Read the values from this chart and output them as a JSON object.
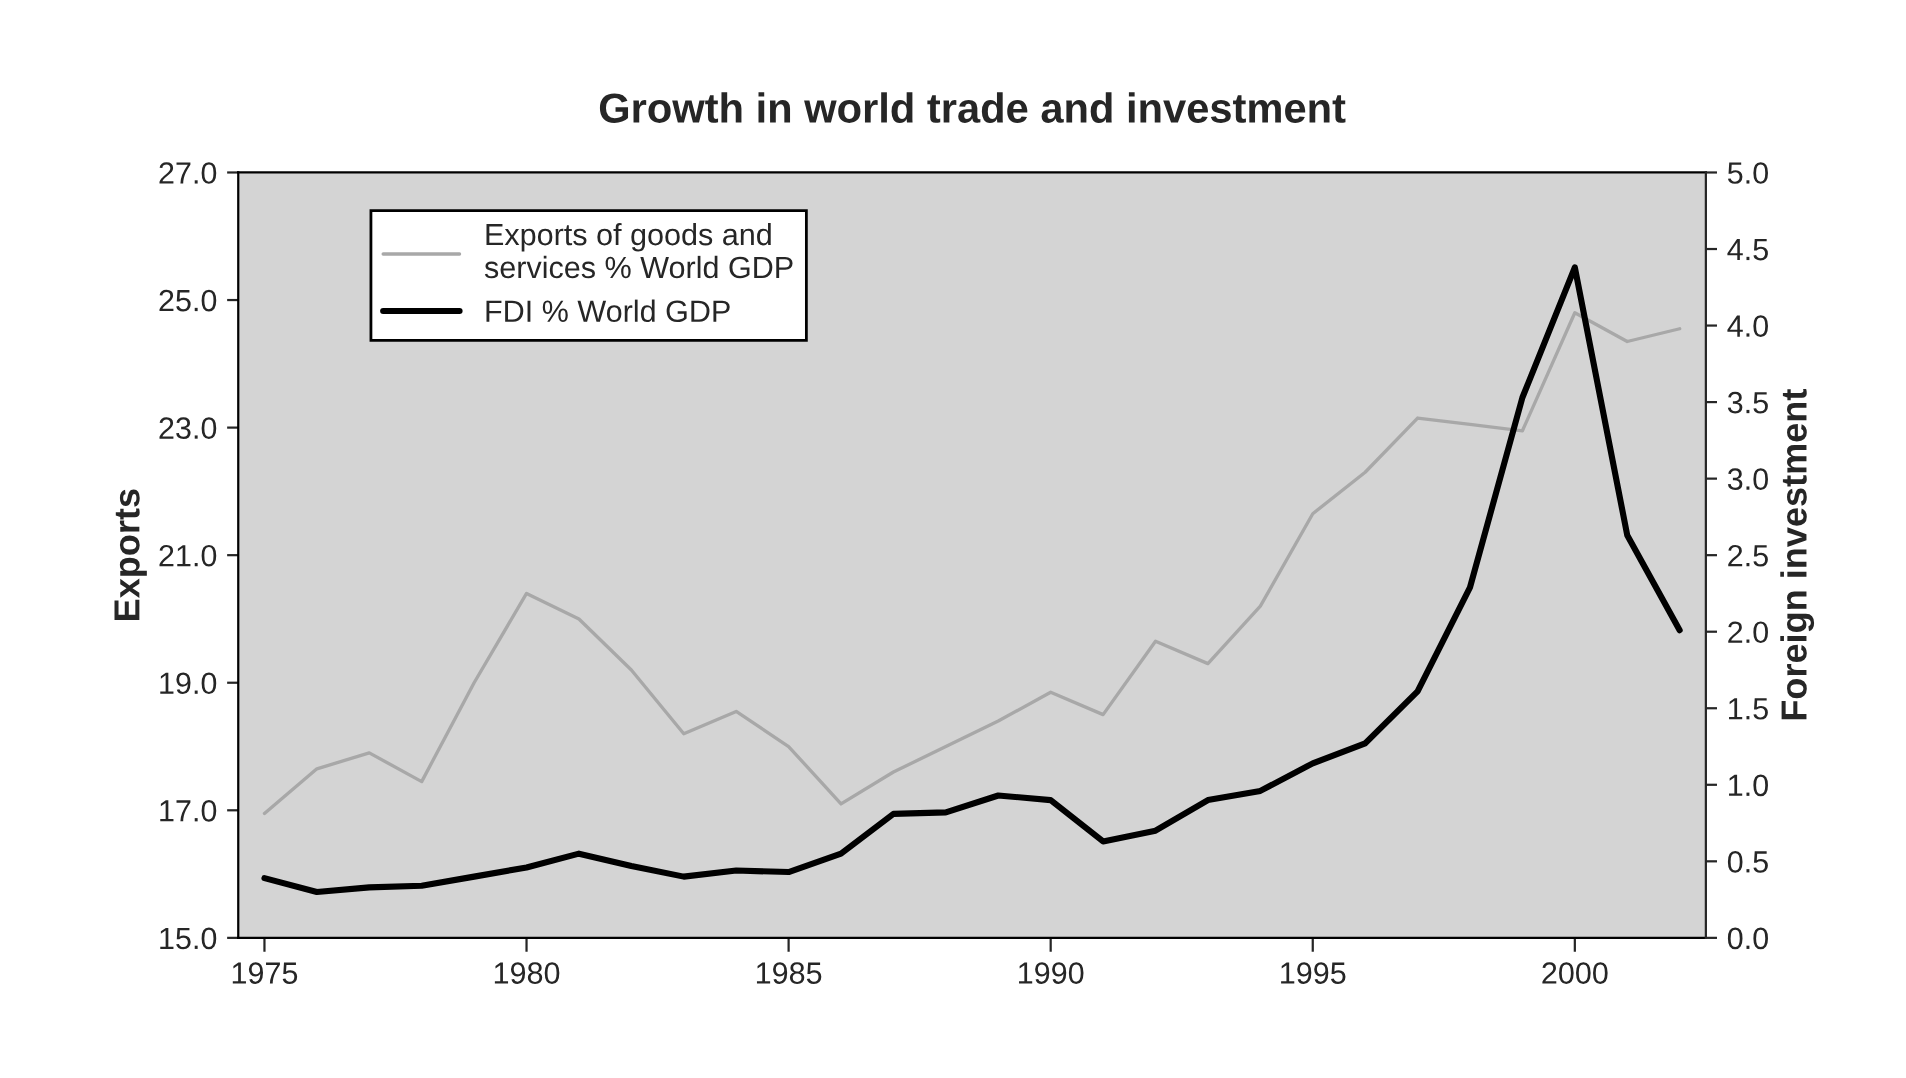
{
  "chart_data": {
    "type": "line",
    "title": "Growth in world trade and investment",
    "ylabel": "Exports",
    "y2label": "Foreign investment",
    "x": [
      1975,
      1976,
      1977,
      1978,
      1979,
      1980,
      1981,
      1982,
      1983,
      1984,
      1985,
      1986,
      1987,
      1988,
      1989,
      1990,
      1991,
      1992,
      1993,
      1994,
      1995,
      1996,
      1997,
      1998,
      1999,
      2000,
      2001,
      2002
    ],
    "series": [
      {
        "name": "Exports of goods and services % World GDP",
        "color": "#a8a8a8",
        "values": [
          16.95,
          17.65,
          17.9,
          17.45,
          19.0,
          20.4,
          20.0,
          19.2,
          18.2,
          18.55,
          18.0,
          17.1,
          17.6,
          18.0,
          18.4,
          18.85,
          18.5,
          19.65,
          19.3,
          20.2,
          21.65,
          22.3,
          23.15,
          23.05,
          22.95,
          24.8,
          24.35,
          24.55
        ]
      },
      {
        "name": "FDI % World GDP",
        "color": "#000000",
        "axis": "y2",
        "values": [
          0.39,
          0.3,
          0.33,
          0.34,
          0.4,
          0.46,
          0.55,
          0.47,
          0.4,
          0.44,
          0.43,
          0.55,
          0.81,
          0.82,
          0.93,
          0.9,
          0.63,
          0.7,
          0.9,
          0.96,
          1.14,
          1.27,
          1.61,
          2.29,
          3.53,
          4.38,
          2.63,
          2.01
        ]
      }
    ],
    "xlim": [
      1974.5,
      2002.5
    ],
    "xticks": [
      1975,
      1980,
      1985,
      1990,
      1995,
      2000
    ],
    "ylim": [
      15,
      27
    ],
    "yticks": [
      {
        "value": 15,
        "label": "15.0"
      },
      {
        "value": 17,
        "label": "17.0"
      },
      {
        "value": 19,
        "label": "19.0"
      },
      {
        "value": 21,
        "label": "21.0"
      },
      {
        "value": 23,
        "label": "23.0"
      },
      {
        "value": 25,
        "label": "25.0"
      },
      {
        "value": 27,
        "label": "27.0"
      }
    ],
    "y2lim": [
      0,
      5
    ],
    "y2ticks": [
      {
        "value": 0,
        "label": "0.0"
      },
      {
        "value": 0.5,
        "label": "0.5"
      },
      {
        "value": 1,
        "label": "1.0"
      },
      {
        "value": 1.5,
        "label": "1.5"
      },
      {
        "value": 2,
        "label": "2.0"
      },
      {
        "value": 2.5,
        "label": "2.5"
      },
      {
        "value": 3,
        "label": "3.0"
      },
      {
        "value": 3.5,
        "label": "3.5"
      },
      {
        "value": 4,
        "label": "4.0"
      },
      {
        "value": 4.5,
        "label": "4.5"
      },
      {
        "value": 5,
        "label": "5.0"
      }
    ],
    "legend": "top left",
    "grid": false,
    "marker": "none",
    "line_style": "solid"
  }
}
